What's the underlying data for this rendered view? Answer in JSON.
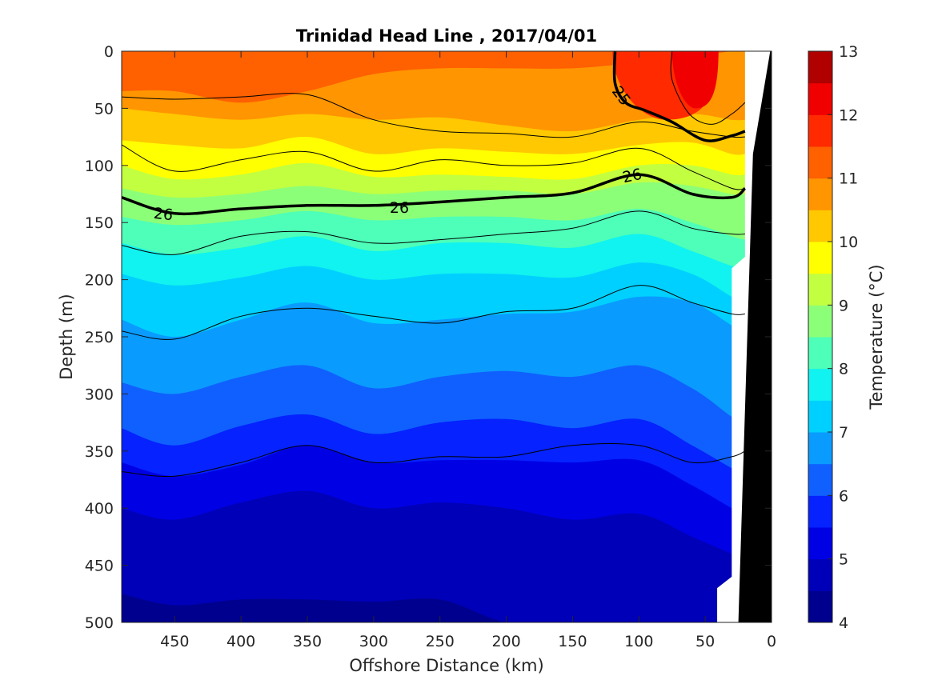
{
  "chart_data": {
    "type": "heatmap",
    "subtype": "filled-contour section",
    "title": "Trinidad Head Line , 2017/04/01",
    "xlabel": "Offshore Distance (km)",
    "ylabel": "Depth (m)",
    "colorbar_label": "Temperature (°C)",
    "xlim": [
      490,
      0
    ],
    "x_reversed": true,
    "ylim": [
      0,
      500
    ],
    "y_reversed": true,
    "x_ticks": [
      450,
      400,
      350,
      300,
      250,
      200,
      150,
      100,
      50,
      0
    ],
    "y_ticks": [
      0,
      50,
      100,
      150,
      200,
      250,
      300,
      350,
      400,
      450,
      500
    ],
    "colorbar_ticks": [
      4,
      5,
      6,
      7,
      8,
      9,
      10,
      11,
      12,
      13
    ],
    "color_levels": [
      {
        "min": 4.0,
        "max": 4.5,
        "color": "#00008f"
      },
      {
        "min": 4.5,
        "max": 5.0,
        "color": "#0000b8"
      },
      {
        "min": 5.0,
        "max": 5.5,
        "color": "#0000e5"
      },
      {
        "min": 5.5,
        "max": 6.0,
        "color": "#0522ff"
      },
      {
        "min": 6.0,
        "max": 6.5,
        "color": "#1060ff"
      },
      {
        "min": 6.5,
        "max": 7.0,
        "color": "#0a9bff"
      },
      {
        "min": 7.0,
        "max": 7.5,
        "color": "#00d0ff"
      },
      {
        "min": 7.5,
        "max": 8.0,
        "color": "#10f3f0"
      },
      {
        "min": 8.0,
        "max": 8.5,
        "color": "#4dffb8"
      },
      {
        "min": 8.5,
        "max": 9.0,
        "color": "#8cff78"
      },
      {
        "min": 9.0,
        "max": 9.5,
        "color": "#c2ff40"
      },
      {
        "min": 9.5,
        "max": 10.0,
        "color": "#ffff00"
      },
      {
        "min": 10.0,
        "max": 10.5,
        "color": "#ffc800"
      },
      {
        "min": 10.5,
        "max": 11.0,
        "color": "#ff9500"
      },
      {
        "min": 11.0,
        "max": 11.5,
        "color": "#ff6000"
      },
      {
        "min": 11.5,
        "max": 12.0,
        "color": "#ff2a00"
      },
      {
        "min": 12.0,
        "max": 12.5,
        "color": "#f00000"
      },
      {
        "min": 12.5,
        "max": 13.0,
        "color": "#b00000"
      }
    ],
    "temperature_isotherm_depths_m": {
      "x_km": [
        490,
        450,
        400,
        350,
        300,
        250,
        200,
        150,
        100,
        60,
        30,
        20
      ],
      "bands": [
        {
          "lower": 11.0,
          "depth": [
            35,
            35,
            45,
            35,
            20,
            15,
            15,
            15,
            10,
            5,
            0,
            0
          ]
        },
        {
          "lower": 10.5,
          "depth": [
            50,
            55,
            60,
            55,
            60,
            58,
            65,
            70,
            60,
            55,
            60,
            60
          ]
        },
        {
          "lower": 10.0,
          "depth": [
            78,
            82,
            85,
            75,
            90,
            85,
            88,
            90,
            82,
            80,
            90,
            90
          ]
        },
        {
          "lower": 9.5,
          "depth": [
            100,
            112,
            108,
            98,
            110,
            108,
            110,
            112,
            100,
            100,
            108,
            108
          ]
        },
        {
          "lower": 9.0,
          "depth": [
            120,
            128,
            125,
            118,
            125,
            122,
            122,
            125,
            115,
            118,
            125,
            125
          ]
        },
        {
          "lower": 8.5,
          "depth": [
            145,
            152,
            148,
            140,
            148,
            145,
            145,
            148,
            138,
            150,
            162,
            165
          ]
        },
        {
          "lower": 8.0,
          "depth": [
            168,
            178,
            172,
            162,
            175,
            168,
            168,
            172,
            160,
            175,
            188,
            190
          ]
        },
        {
          "lower": 7.5,
          "depth": [
            195,
            205,
            198,
            188,
            200,
            195,
            195,
            198,
            185,
            195,
            215,
            220
          ]
        },
        {
          "lower": 7.0,
          "depth": [
            235,
            250,
            235,
            220,
            238,
            235,
            230,
            228,
            215,
            220,
            240,
            245
          ]
        },
        {
          "lower": 6.5,
          "depth": [
            290,
            300,
            285,
            275,
            295,
            285,
            280,
            285,
            275,
            295,
            320,
            325
          ]
        },
        {
          "lower": 6.0,
          "depth": [
            330,
            345,
            328,
            318,
            335,
            325,
            322,
            330,
            322,
            345,
            365,
            370
          ]
        },
        {
          "lower": 5.5,
          "depth": [
            360,
            372,
            362,
            345,
            360,
            358,
            358,
            360,
            358,
            380,
            400,
            405
          ]
        },
        {
          "lower": 5.0,
          "depth": [
            400,
            410,
            395,
            385,
            400,
            395,
            400,
            410,
            405,
            425,
            440,
            445
          ]
        },
        {
          "lower": 4.5,
          "depth": [
            475,
            485,
            480,
            480,
            482,
            480,
            500,
            500,
            500,
            500,
            500,
            500
          ]
        }
      ],
      "warm_patches": [
        {
          "min": 11.5,
          "x_km": [
            120,
            40
          ],
          "depth": [
            0,
            60
          ]
        },
        {
          "min": 12.0,
          "x_km": [
            75,
            40
          ],
          "depth": [
            0,
            50
          ]
        }
      ]
    },
    "density_contours": {
      "x_km": [
        490,
        450,
        400,
        350,
        300,
        250,
        200,
        150,
        100,
        60,
        30,
        20
      ],
      "lines": [
        {
          "depth": [
            40,
            42,
            40,
            38,
            60,
            70,
            72,
            75,
            62,
            70,
            75,
            75
          ]
        },
        {
          "depth": [
            82,
            105,
            95,
            88,
            105,
            95,
            100,
            98,
            85,
            105,
            120,
            120
          ]
        },
        {
          "label": "26",
          "depth": [
            128,
            142,
            138,
            135,
            135,
            132,
            128,
            124,
            108,
            125,
            128,
            120
          ]
        },
        {
          "depth": [
            170,
            178,
            162,
            158,
            168,
            165,
            160,
            155,
            140,
            155,
            160,
            160
          ]
        },
        {
          "depth": [
            245,
            252,
            232,
            225,
            232,
            238,
            228,
            225,
            205,
            220,
            230,
            230
          ]
        },
        {
          "depth": [
            368,
            372,
            360,
            345,
            360,
            355,
            355,
            345,
            345,
            360,
            355,
            350
          ]
        }
      ],
      "labels": [
        "25",
        "26"
      ]
    },
    "masked_region": "bathymetry (black), near-shore gap (white)"
  }
}
